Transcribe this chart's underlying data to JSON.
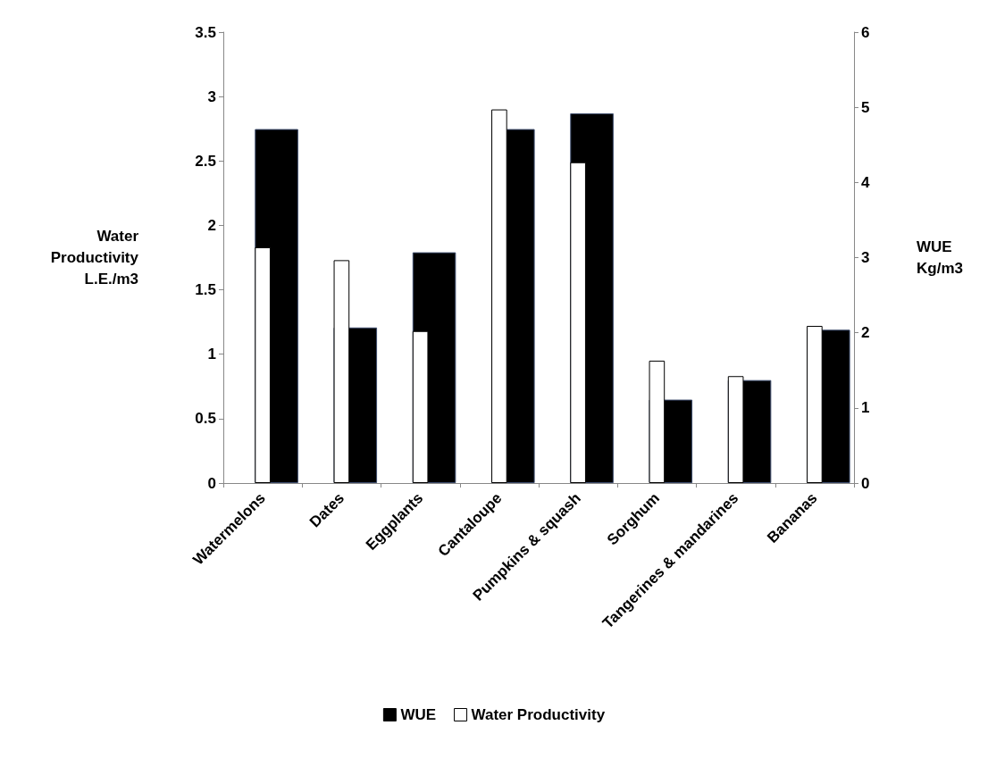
{
  "chart_data": {
    "type": "bar",
    "ylabel": "Water\nProductivity\nL.E./m3",
    "y2label": "WUE\nKg/m3",
    "categories": [
      "Watermelons",
      "Dates",
      "Eggplants",
      "Cantaloupe",
      "Pumpkins & squash",
      "Sorghum",
      "Tangerines & mandarines",
      "Bananas"
    ],
    "series": [
      {
        "name": "WUE",
        "color": "#000000",
        "axis": "y2",
        "values": [
          4.71,
          2.07,
          3.07,
          4.71,
          4.92,
          1.11,
          1.37,
          2.04
        ]
      },
      {
        "name": "Water Productivity",
        "color": "#ffffff",
        "values": [
          1.83,
          1.73,
          1.18,
          2.9,
          2.49,
          0.95,
          0.83,
          1.22
        ]
      }
    ],
    "ylim": [
      0,
      3.5
    ],
    "yticks": [
      0,
      0.5,
      1,
      1.5,
      2,
      2.5,
      3,
      3.5
    ],
    "y2lim": [
      0,
      6
    ],
    "y2ticks": [
      0,
      1,
      2,
      3,
      4,
      5,
      6
    ],
    "grid": false,
    "legend": "bottom"
  }
}
